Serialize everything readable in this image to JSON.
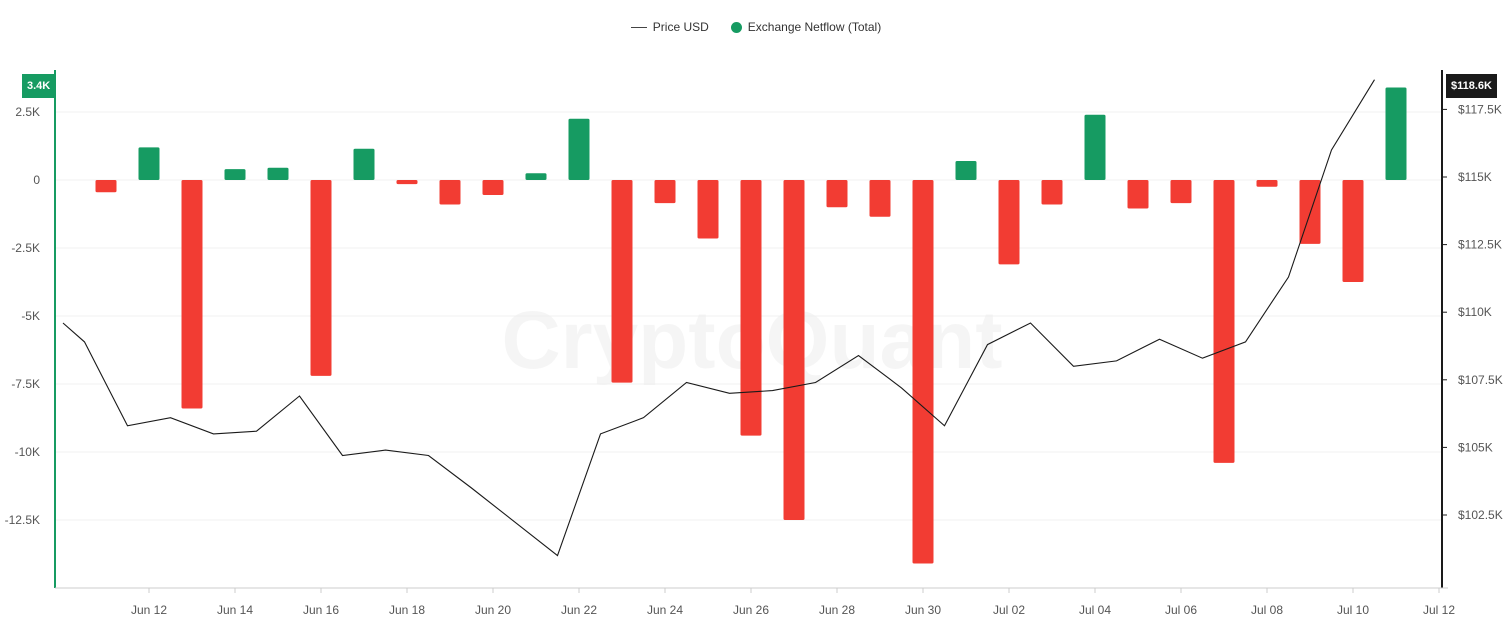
{
  "watermark": "CryptoQuant",
  "legend": {
    "price_label": "Price USD",
    "netflow_label": "Exchange Netflow (Total)"
  },
  "badges": {
    "left": "3.4K",
    "right": "$118.6K"
  },
  "colors": {
    "positive": "#169b62",
    "negative": "#f23c33",
    "price_line": "#1a1a1a",
    "left_axis": "#169b62",
    "right_axis": "#1a1a1a",
    "right_badge": "#1a1a1a",
    "grid": "#f0f0f0"
  },
  "chart_data": {
    "type": "bar",
    "title": "",
    "xlabel": "",
    "ylabel": "",
    "x_ticks": [
      "Jun 12",
      "Jun 14",
      "Jun 16",
      "Jun 18",
      "Jun 20",
      "Jun 22",
      "Jun 24",
      "Jun 26",
      "Jun 28",
      "Jun 30",
      "Jul 02",
      "Jul 04",
      "Jul 06",
      "Jul 08",
      "Jul 10",
      "Jul 12"
    ],
    "left_axis": {
      "ticks": [
        2500,
        0,
        -2500,
        -5000,
        -7500,
        -10000,
        -12500
      ],
      "tick_labels": [
        "2.5K",
        "0",
        "-2.5K",
        "-5K",
        "-7.5K",
        "-10K",
        "-12.5K"
      ],
      "range": [
        -15000,
        3400
      ]
    },
    "right_axis": {
      "ticks": [
        117500,
        115000,
        112500,
        110000,
        107500,
        105000,
        102500
      ],
      "tick_labels": [
        "$117.5K",
        "$115K",
        "$112.5K",
        "$110K",
        "$107.5K",
        "$105K",
        "$102.5K"
      ],
      "range": [
        100400,
        118600
      ]
    },
    "x_range": [
      "2025-06-10",
      "2025-07-12"
    ],
    "series": [
      {
        "name": "Exchange Netflow (Total)",
        "type": "bar",
        "axis": "left",
        "points": [
          {
            "date": "2025-06-11",
            "value": -450
          },
          {
            "date": "2025-06-12",
            "value": 1200
          },
          {
            "date": "2025-06-13",
            "value": -8400
          },
          {
            "date": "2025-06-14",
            "value": 400
          },
          {
            "date": "2025-06-15",
            "value": 450
          },
          {
            "date": "2025-06-16",
            "value": -7200
          },
          {
            "date": "2025-06-17",
            "value": 1150
          },
          {
            "date": "2025-06-18",
            "value": -150
          },
          {
            "date": "2025-06-19",
            "value": -900
          },
          {
            "date": "2025-06-20",
            "value": -550
          },
          {
            "date": "2025-06-21",
            "value": 250
          },
          {
            "date": "2025-06-22",
            "value": 2250
          },
          {
            "date": "2025-06-23",
            "value": -7450
          },
          {
            "date": "2025-06-24",
            "value": -850
          },
          {
            "date": "2025-06-25",
            "value": -2150
          },
          {
            "date": "2025-06-26",
            "value": -9400
          },
          {
            "date": "2025-06-27",
            "value": -12500
          },
          {
            "date": "2025-06-28",
            "value": -1000
          },
          {
            "date": "2025-06-29",
            "value": -1350
          },
          {
            "date": "2025-06-30",
            "value": -14100
          },
          {
            "date": "2025-07-01",
            "value": 700
          },
          {
            "date": "2025-07-02",
            "value": -3100
          },
          {
            "date": "2025-07-03",
            "value": -900
          },
          {
            "date": "2025-07-04",
            "value": 2400
          },
          {
            "date": "2025-07-05",
            "value": -1050
          },
          {
            "date": "2025-07-06",
            "value": -850
          },
          {
            "date": "2025-07-07",
            "value": -10400
          },
          {
            "date": "2025-07-08",
            "value": -250
          },
          {
            "date": "2025-07-09",
            "value": -2350
          },
          {
            "date": "2025-07-10",
            "value": -3750
          },
          {
            "date": "2025-07-11",
            "value": 3400
          }
        ]
      },
      {
        "name": "Price USD",
        "type": "line",
        "axis": "right",
        "points": [
          {
            "date": "2025-06-10",
            "value": 109600
          },
          {
            "date": "2025-06-10.5",
            "value": 108900
          },
          {
            "date": "2025-06-11.5",
            "value": 105800
          },
          {
            "date": "2025-06-12.5",
            "value": 106100
          },
          {
            "date": "2025-06-13.5",
            "value": 105500
          },
          {
            "date": "2025-06-14.5",
            "value": 105600
          },
          {
            "date": "2025-06-15.5",
            "value": 106900
          },
          {
            "date": "2025-06-16.5",
            "value": 104700
          },
          {
            "date": "2025-06-17.5",
            "value": 104900
          },
          {
            "date": "2025-06-18.5",
            "value": 104700
          },
          {
            "date": "2025-06-19.5",
            "value": 103500
          },
          {
            "date": "2025-06-21.5",
            "value": 101000
          },
          {
            "date": "2025-06-22.5",
            "value": 105500
          },
          {
            "date": "2025-06-23.5",
            "value": 106100
          },
          {
            "date": "2025-06-24.5",
            "value": 107400
          },
          {
            "date": "2025-06-25.5",
            "value": 107000
          },
          {
            "date": "2025-06-26.5",
            "value": 107100
          },
          {
            "date": "2025-06-27.5",
            "value": 107400
          },
          {
            "date": "2025-06-28.5",
            "value": 108400
          },
          {
            "date": "2025-06-29.5",
            "value": 107200
          },
          {
            "date": "2025-06-30.5",
            "value": 105800
          },
          {
            "date": "2025-07-01.5",
            "value": 108800
          },
          {
            "date": "2025-07-02.5",
            "value": 109600
          },
          {
            "date": "2025-07-03.5",
            "value": 108000
          },
          {
            "date": "2025-07-04.5",
            "value": 108200
          },
          {
            "date": "2025-07-05.5",
            "value": 109000
          },
          {
            "date": "2025-07-06.5",
            "value": 108300
          },
          {
            "date": "2025-07-07.5",
            "value": 108900
          },
          {
            "date": "2025-07-08.5",
            "value": 111300
          },
          {
            "date": "2025-07-09.5",
            "value": 116000
          },
          {
            "date": "2025-07-10.5",
            "value": 118600
          }
        ]
      }
    ],
    "grid": true,
    "legend_position": "top-center"
  }
}
